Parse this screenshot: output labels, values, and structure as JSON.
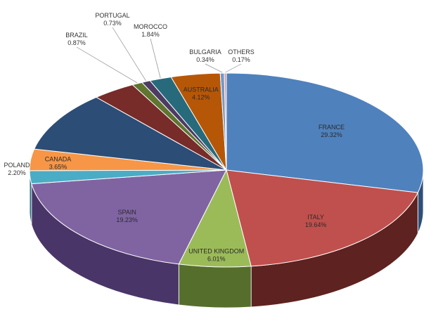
{
  "chart_data": {
    "type": "pie",
    "title": "",
    "slices": [
      {
        "label": "FRANCE",
        "value_text": "29.32%",
        "value": 29.32,
        "color": "#4f81bd",
        "side": "#2f4f78"
      },
      {
        "label": "ITALY",
        "value_text": "19.64%",
        "value": 19.64,
        "color": "#c0504d",
        "side": "#5e2220"
      },
      {
        "label": "UNITED KINGDOM",
        "value_text": "6.01%",
        "value": 6.01,
        "color": "#9bbb59",
        "side": "#566e2c"
      },
      {
        "label": "SPAIN",
        "value_text": "19.23%",
        "value": 19.23,
        "color": "#8064a2",
        "side": "#4a3568"
      },
      {
        "label": "POLAND",
        "value_text": "2.20%",
        "value": 2.2,
        "color": "#4bacc6",
        "side": "#2a6f82"
      },
      {
        "label": "CANADA",
        "value_text": "3.65%",
        "value": 3.65,
        "color": "#f79646",
        "side": "#a8601f"
      },
      {
        "label": "",
        "value_text": "",
        "value": 10.24,
        "color": "#2c4d75",
        "side": "#1b2f48"
      },
      {
        "label": "",
        "value_text": "",
        "value": 3.65,
        "color": "#772c2a",
        "side": "#4a1918"
      },
      {
        "label": "BRAZIL",
        "value_text": "0.87%",
        "value": 0.87,
        "color": "#5f7530",
        "side": "#3a481c"
      },
      {
        "label": "PORTUGAL",
        "value_text": "0.73%",
        "value": 0.73,
        "color": "#4d3b62",
        "side": "#2e233b"
      },
      {
        "label": "MOROCCO",
        "value_text": "1.84%",
        "value": 1.84,
        "color": "#276a7c",
        "side": "#16404b"
      },
      {
        "label": "AUSTRALIA",
        "value_text": "4.12%",
        "value": 4.12,
        "color": "#b65708",
        "side": "#7a3a05"
      },
      {
        "label": "BULGARIA",
        "value_text": "0.34%",
        "value": 0.34,
        "color": "#729aca",
        "side": "#45628a"
      },
      {
        "label": "OTHERS",
        "value_text": "0.17%",
        "value": 0.17,
        "color": "#d99694",
        "side": "#8a5d5b"
      }
    ]
  }
}
